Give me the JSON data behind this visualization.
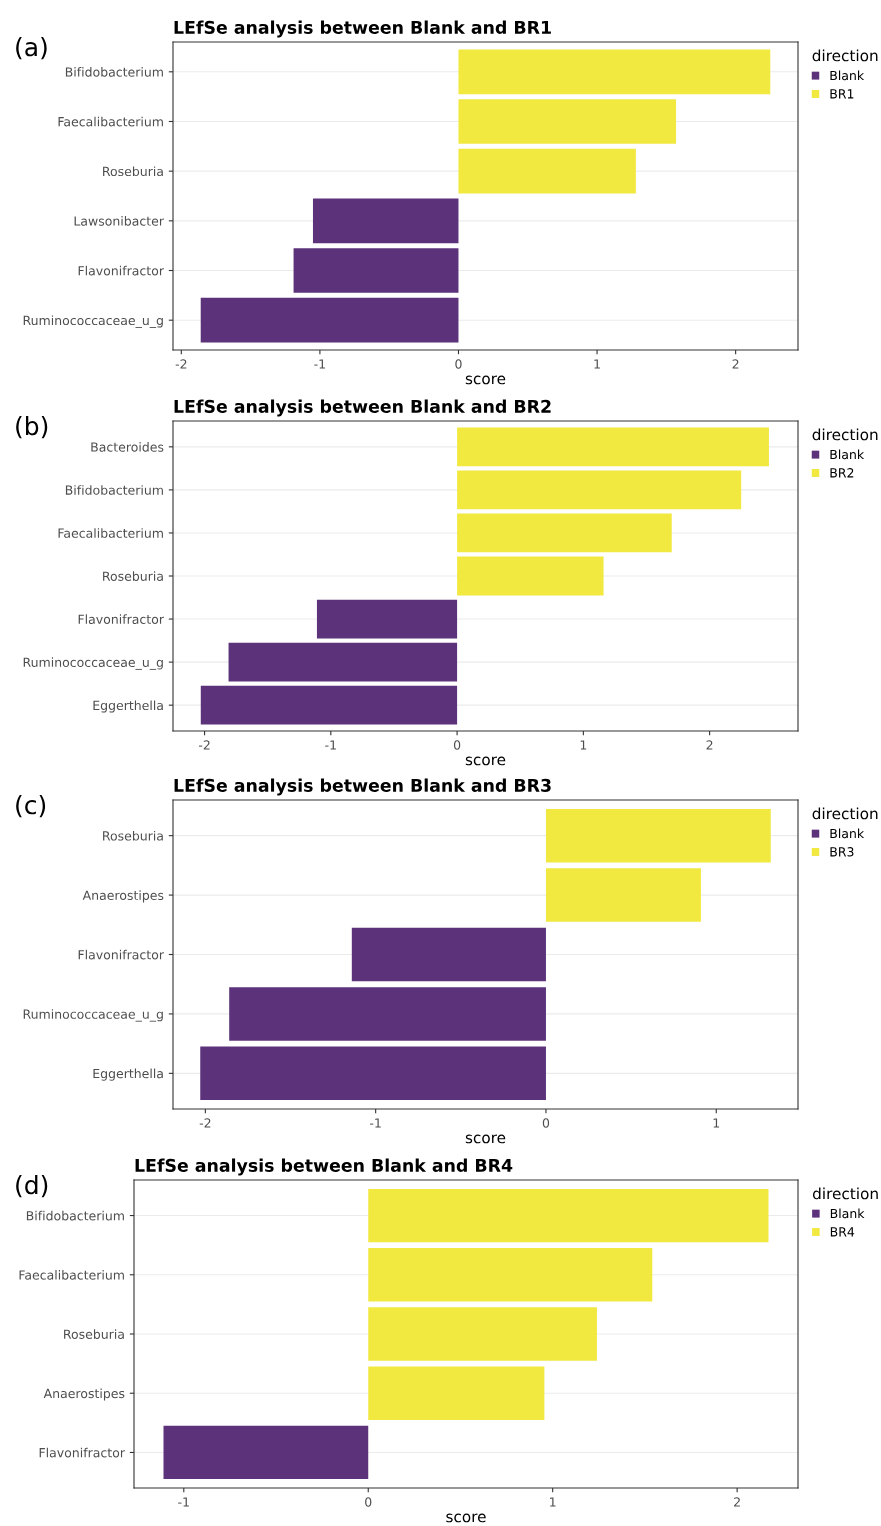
{
  "chart_data": [
    {
      "type": "bar",
      "orientation": "horizontal",
      "stacked": true,
      "title": "LEfSe analysis between Blank and BR1",
      "xlabel": "score",
      "legend_title": "direction",
      "legend": "right",
      "grid": "y",
      "annotations": [
        "(a)"
      ],
      "categories": [
        "Bifidobacterium",
        "Faecalibacterium",
        "Roseburia",
        "Lawsonibacter",
        "Flavonifractor",
        "Ruminococcaceae_u_g"
      ],
      "series": [
        {
          "name": "Blank",
          "color": "#5c327a",
          "values": [
            null,
            null,
            null,
            -1.05,
            -1.19,
            -1.86
          ]
        },
        {
          "name": "BR1",
          "color": "#f1e840",
          "values": [
            2.25,
            1.57,
            1.28,
            null,
            null,
            null
          ]
        }
      ],
      "xlim": [
        -2.06,
        2.45
      ],
      "xticks": [
        -2,
        -1,
        0,
        1,
        2
      ]
    },
    {
      "type": "bar",
      "orientation": "horizontal",
      "stacked": true,
      "title": "LEfSe analysis between Blank and BR2",
      "xlabel": "score",
      "legend_title": "direction",
      "legend": "right",
      "grid": "y",
      "annotations": [
        "(b)"
      ],
      "categories": [
        "Bacteroides",
        "Bifidobacterium",
        "Faecalibacterium",
        "Roseburia",
        "Flavonifractor",
        "Ruminococcaceae_u_g",
        "Eggerthella"
      ],
      "series": [
        {
          "name": "Blank",
          "color": "#5c327a",
          "values": [
            null,
            null,
            null,
            null,
            -1.11,
            -1.81,
            -2.03
          ]
        },
        {
          "name": "BR2",
          "color": "#f1e840",
          "values": [
            2.47,
            2.25,
            1.7,
            1.16,
            null,
            null,
            null
          ]
        }
      ],
      "xlim": [
        -2.25,
        2.7
      ],
      "xticks": [
        -2,
        -1,
        0,
        1,
        2
      ]
    },
    {
      "type": "bar",
      "orientation": "horizontal",
      "stacked": true,
      "title": "LEfSe analysis between Blank and BR3",
      "xlabel": "score",
      "legend_title": "direction",
      "legend": "right",
      "grid": "y",
      "annotations": [
        "(c)"
      ],
      "categories": [
        "Roseburia",
        "Anaerostipes",
        "Flavonifractor",
        "Ruminococcaceae_u_g",
        "Eggerthella"
      ],
      "series": [
        {
          "name": "Blank",
          "color": "#5c327a",
          "values": [
            null,
            null,
            -1.14,
            -1.86,
            -2.03
          ]
        },
        {
          "name": "BR3",
          "color": "#f1e840",
          "values": [
            1.32,
            0.91,
            null,
            null,
            null
          ]
        }
      ],
      "xlim": [
        -2.19,
        1.48
      ],
      "xticks": [
        -2,
        -1,
        0,
        1
      ]
    },
    {
      "type": "bar",
      "orientation": "horizontal",
      "stacked": true,
      "title": "LEfSe analysis between Blank and BR4",
      "xlabel": "score",
      "legend_title": "direction",
      "legend": "right",
      "grid": "y",
      "annotations": [
        "(d)"
      ],
      "categories": [
        "Bifidobacterium",
        "Faecalibacterium",
        "Roseburia",
        "Anaerostipes",
        "Flavonifractor"
      ],
      "series": [
        {
          "name": "Blank",
          "color": "#5c327a",
          "values": [
            null,
            null,
            null,
            null,
            -1.11
          ]
        },
        {
          "name": "BR4",
          "color": "#f1e840",
          "values": [
            2.17,
            1.54,
            1.24,
            0.955,
            null
          ]
        }
      ],
      "xlim": [
        -1.27,
        2.33
      ],
      "xticks": [
        -1,
        0,
        1,
        2
      ]
    }
  ]
}
